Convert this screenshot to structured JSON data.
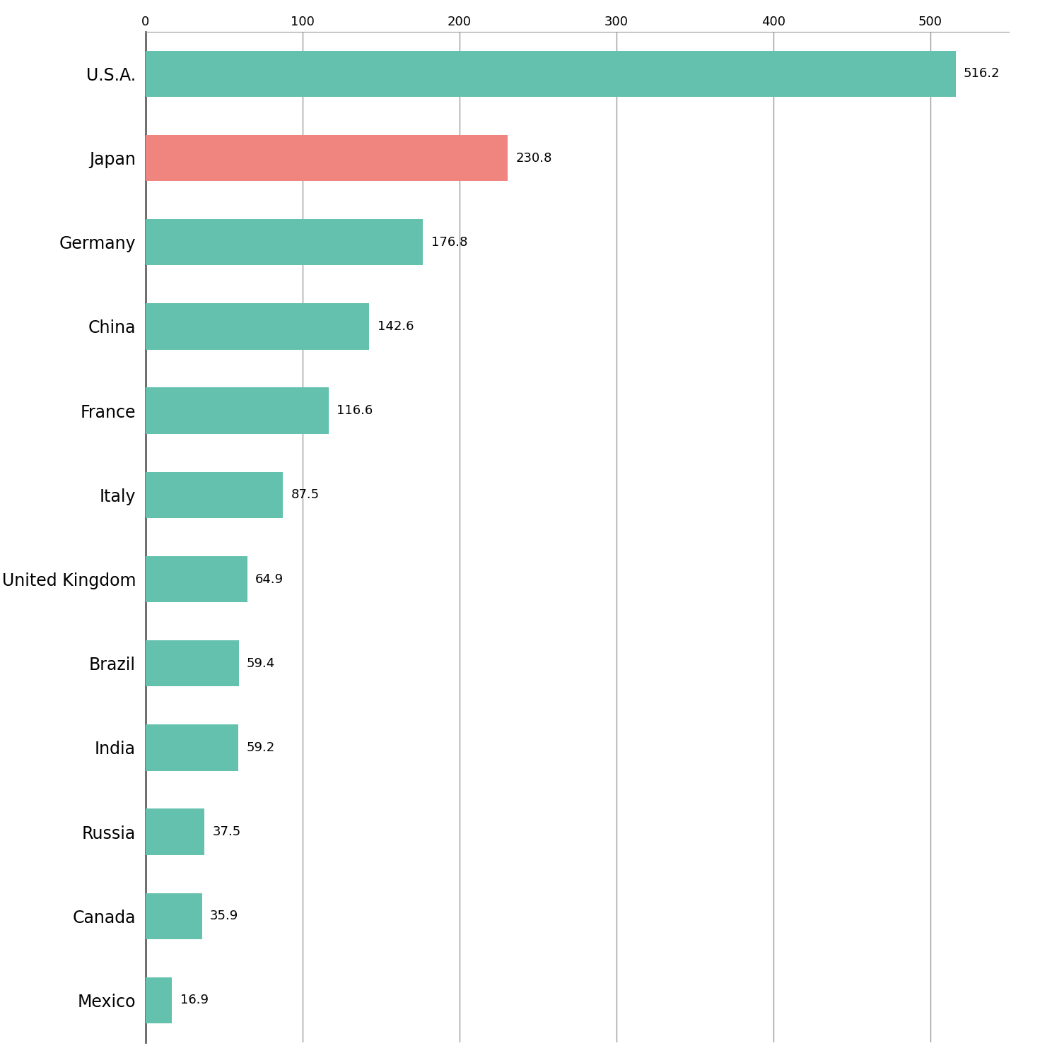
{
  "chart_data": {
    "type": "bar",
    "orientation": "horizontal",
    "categories": [
      "U.S.A.",
      "Japan",
      "Germany",
      "China",
      "France",
      "Italy",
      "United Kingdom",
      "Brazil",
      "India",
      "Russia",
      "Canada",
      "Mexico"
    ],
    "values": [
      516.2,
      230.8,
      176.8,
      142.6,
      116.6,
      87.5,
      64.9,
      59.4,
      59.2,
      37.5,
      35.9,
      16.9
    ],
    "colors": [
      "#63c1ad",
      "#f0857f",
      "#63c1ad",
      "#63c1ad",
      "#63c1ad",
      "#63c1ad",
      "#63c1ad",
      "#63c1ad",
      "#63c1ad",
      "#63c1ad",
      "#63c1ad",
      "#63c1ad"
    ],
    "xlim": [
      0,
      550
    ],
    "xticks": [
      0,
      100,
      200,
      300,
      400,
      500
    ],
    "grid": true,
    "data_labels": true
  }
}
